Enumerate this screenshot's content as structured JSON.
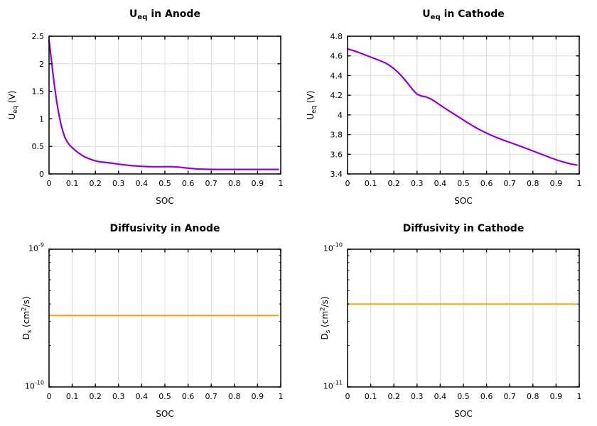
{
  "style": {
    "background": "#ffffff",
    "axis_color": "#000000",
    "grid_color": "#dcdcdc",
    "text_color": "#000000",
    "ocv_curve_color": "#9400d3",
    "diffusivity_curve_color": "#ffa500"
  },
  "chart_data": [
    {
      "id": "ueq-anode",
      "type": "line",
      "title_parts": [
        [
          "U",
          ""
        ],
        [
          "eq",
          "sub"
        ],
        [
          " in Anode",
          ""
        ]
      ],
      "xlabel": "SOC",
      "ylabel_parts": [
        [
          "U",
          ""
        ],
        [
          "eq",
          "sub"
        ],
        [
          " (V)",
          ""
        ]
      ],
      "xlim": [
        0,
        1
      ],
      "ylim": [
        0,
        2.5
      ],
      "y_scale": "linear",
      "x_ticks": [
        [
          0,
          "0"
        ],
        [
          0.1,
          "0.1"
        ],
        [
          0.2,
          "0.2"
        ],
        [
          0.3,
          "0.3"
        ],
        [
          0.4,
          "0.4"
        ],
        [
          0.5,
          "0.5"
        ],
        [
          0.6,
          "0.6"
        ],
        [
          0.7,
          "0.7"
        ],
        [
          0.8,
          "0.8"
        ],
        [
          0.9,
          "0.9"
        ],
        [
          1,
          "1"
        ]
      ],
      "y_ticks": [
        [
          0,
          "0"
        ],
        [
          0.5,
          "0.5"
        ],
        [
          1,
          "1"
        ],
        [
          1.5,
          "1.5"
        ],
        [
          2,
          "2"
        ],
        [
          2.5,
          "2.5"
        ]
      ],
      "grid": true,
      "series": [
        {
          "name": "anode-ocv",
          "color": "#9400d3",
          "width": 2.2,
          "points": [
            [
              0.0,
              2.43
            ],
            [
              0.005,
              2.25
            ],
            [
              0.01,
              2.07
            ],
            [
              0.015,
              1.89
            ],
            [
              0.02,
              1.715
            ],
            [
              0.025,
              1.55
            ],
            [
              0.03,
              1.4
            ],
            [
              0.035,
              1.265
            ],
            [
              0.04,
              1.14
            ],
            [
              0.045,
              1.03
            ],
            [
              0.05,
              0.93
            ],
            [
              0.055,
              0.845
            ],
            [
              0.06,
              0.77
            ],
            [
              0.065,
              0.705
            ],
            [
              0.07,
              0.65
            ],
            [
              0.075,
              0.608
            ],
            [
              0.08,
              0.575
            ],
            [
              0.085,
              0.545
            ],
            [
              0.09,
              0.52
            ],
            [
              0.095,
              0.498
            ],
            [
              0.1,
              0.478
            ],
            [
              0.11,
              0.44
            ],
            [
              0.12,
              0.405
            ],
            [
              0.13,
              0.374
            ],
            [
              0.14,
              0.346
            ],
            [
              0.15,
              0.32
            ],
            [
              0.16,
              0.299
            ],
            [
              0.17,
              0.281
            ],
            [
              0.18,
              0.265
            ],
            [
              0.19,
              0.25
            ],
            [
              0.2,
              0.237
            ],
            [
              0.22,
              0.221
            ],
            [
              0.24,
              0.211
            ],
            [
              0.26,
              0.201
            ],
            [
              0.28,
              0.19
            ],
            [
              0.3,
              0.178
            ],
            [
              0.32,
              0.167
            ],
            [
              0.34,
              0.158
            ],
            [
              0.36,
              0.15
            ],
            [
              0.38,
              0.143
            ],
            [
              0.4,
              0.138
            ],
            [
              0.42,
              0.134
            ],
            [
              0.44,
              0.132
            ],
            [
              0.46,
              0.131
            ],
            [
              0.48,
              0.131
            ],
            [
              0.5,
              0.132
            ],
            [
              0.52,
              0.133
            ],
            [
              0.535,
              0.132
            ],
            [
              0.55,
              0.128
            ],
            [
              0.57,
              0.12
            ],
            [
              0.59,
              0.11
            ],
            [
              0.61,
              0.101
            ],
            [
              0.63,
              0.094
            ],
            [
              0.65,
              0.089
            ],
            [
              0.67,
              0.086
            ],
            [
              0.69,
              0.084
            ],
            [
              0.72,
              0.083
            ],
            [
              0.76,
              0.083
            ],
            [
              0.8,
              0.083
            ],
            [
              0.85,
              0.083
            ],
            [
              0.9,
              0.083
            ],
            [
              0.95,
              0.083
            ],
            [
              0.99,
              0.083
            ]
          ]
        }
      ]
    },
    {
      "id": "ueq-cathode",
      "type": "line",
      "title_parts": [
        [
          "U",
          ""
        ],
        [
          "eq",
          "sub"
        ],
        [
          " in Cathode",
          ""
        ]
      ],
      "xlabel": "SOC",
      "ylabel_parts": [
        [
          "U",
          ""
        ],
        [
          "eq",
          "sub"
        ],
        [
          " (V)",
          ""
        ]
      ],
      "xlim": [
        0,
        1
      ],
      "ylim": [
        3.4,
        4.8
      ],
      "y_scale": "linear",
      "x_ticks": [
        [
          0,
          "0"
        ],
        [
          0.1,
          "0.1"
        ],
        [
          0.2,
          "0.2"
        ],
        [
          0.3,
          "0.3"
        ],
        [
          0.4,
          "0.4"
        ],
        [
          0.5,
          "0.5"
        ],
        [
          0.6,
          "0.6"
        ],
        [
          0.7,
          "0.7"
        ],
        [
          0.8,
          "0.8"
        ],
        [
          0.9,
          "0.9"
        ],
        [
          1,
          "1"
        ]
      ],
      "y_ticks": [
        [
          3.4,
          "3.4"
        ],
        [
          3.6,
          "3.6"
        ],
        [
          3.8,
          "3.8"
        ],
        [
          4,
          "4"
        ],
        [
          4.2,
          "4.2"
        ],
        [
          4.4,
          "4.4"
        ],
        [
          4.6,
          "4.6"
        ],
        [
          4.8,
          "4.8"
        ]
      ],
      "grid": true,
      "series": [
        {
          "name": "cathode-ocv",
          "color": "#9400d3",
          "width": 2.2,
          "points": [
            [
              0.0,
              4.67
            ],
            [
              0.02,
              4.658
            ],
            [
              0.04,
              4.642
            ],
            [
              0.06,
              4.624
            ],
            [
              0.08,
              4.606
            ],
            [
              0.1,
              4.588
            ],
            [
              0.12,
              4.57
            ],
            [
              0.14,
              4.552
            ],
            [
              0.16,
              4.532
            ],
            [
              0.18,
              4.505
            ],
            [
              0.2,
              4.47
            ],
            [
              0.22,
              4.428
            ],
            [
              0.24,
              4.378
            ],
            [
              0.26,
              4.32
            ],
            [
              0.28,
              4.26
            ],
            [
              0.3,
              4.21
            ],
            [
              0.32,
              4.192
            ],
            [
              0.34,
              4.182
            ],
            [
              0.36,
              4.162
            ],
            [
              0.38,
              4.132
            ],
            [
              0.4,
              4.1
            ],
            [
              0.42,
              4.068
            ],
            [
              0.44,
              4.038
            ],
            [
              0.46,
              4.008
            ],
            [
              0.48,
              3.978
            ],
            [
              0.5,
              3.948
            ],
            [
              0.52,
              3.918
            ],
            [
              0.54,
              3.89
            ],
            [
              0.56,
              3.862
            ],
            [
              0.58,
              3.838
            ],
            [
              0.6,
              3.815
            ],
            [
              0.62,
              3.793
            ],
            [
              0.64,
              3.773
            ],
            [
              0.66,
              3.755
            ],
            [
              0.68,
              3.738
            ],
            [
              0.7,
              3.721
            ],
            [
              0.72,
              3.704
            ],
            [
              0.74,
              3.687
            ],
            [
              0.76,
              3.67
            ],
            [
              0.78,
              3.652
            ],
            [
              0.8,
              3.634
            ],
            [
              0.82,
              3.616
            ],
            [
              0.84,
              3.598
            ],
            [
              0.86,
              3.58
            ],
            [
              0.88,
              3.562
            ],
            [
              0.9,
              3.545
            ],
            [
              0.92,
              3.53
            ],
            [
              0.94,
              3.516
            ],
            [
              0.96,
              3.503
            ],
            [
              0.98,
              3.495
            ],
            [
              0.99,
              3.49
            ]
          ]
        }
      ]
    },
    {
      "id": "diffusivity-anode",
      "type": "line",
      "title_parts": [
        [
          "Diffusivity in Anode",
          ""
        ]
      ],
      "xlabel": "SOC",
      "ylabel_parts": [
        [
          "D",
          ""
        ],
        [
          "s",
          "sub"
        ],
        [
          " (cm",
          ""
        ],
        [
          "2",
          "sup"
        ],
        [
          "/s)",
          ""
        ]
      ],
      "xlim": [
        0,
        1
      ],
      "ylim": [
        1e-10,
        1e-09
      ],
      "y_scale": "log",
      "x_ticks": [
        [
          0,
          "0"
        ],
        [
          0.1,
          "0.1"
        ],
        [
          0.2,
          "0.2"
        ],
        [
          0.3,
          "0.3"
        ],
        [
          0.4,
          "0.4"
        ],
        [
          0.5,
          "0.5"
        ],
        [
          0.6,
          "0.6"
        ],
        [
          0.7,
          "0.7"
        ],
        [
          0.8,
          "0.8"
        ],
        [
          0.9,
          "0.9"
        ],
        [
          1,
          "1"
        ]
      ],
      "y_ticks": [
        [
          1e-09,
          "10",
          "-9"
        ],
        [
          1e-10,
          "10",
          "-10"
        ]
      ],
      "grid": true,
      "series": [
        {
          "name": "anode-diffusivity",
          "color": "#ffa500",
          "width": 2,
          "constant_value": 3.3e-10,
          "points": [
            [
              0,
              3.3e-10
            ],
            [
              0.99,
              3.3e-10
            ]
          ]
        }
      ]
    },
    {
      "id": "diffusivity-cathode",
      "type": "line",
      "title_parts": [
        [
          "Diffusivity in Cathode",
          ""
        ]
      ],
      "xlabel": "SOC",
      "ylabel_parts": [
        [
          "D",
          ""
        ],
        [
          "s",
          "sub"
        ],
        [
          " (cm",
          ""
        ],
        [
          "2",
          "sup"
        ],
        [
          "/s)",
          ""
        ]
      ],
      "xlim": [
        0,
        1
      ],
      "ylim": [
        1e-11,
        1e-10
      ],
      "y_scale": "log",
      "x_ticks": [
        [
          0,
          "0"
        ],
        [
          0.1,
          "0.1"
        ],
        [
          0.2,
          "0.2"
        ],
        [
          0.3,
          "0.3"
        ],
        [
          0.4,
          "0.4"
        ],
        [
          0.5,
          "0.5"
        ],
        [
          0.6,
          "0.6"
        ],
        [
          0.7,
          "0.7"
        ],
        [
          0.8,
          "0.8"
        ],
        [
          0.9,
          "0.9"
        ],
        [
          1,
          "1"
        ]
      ],
      "y_ticks": [
        [
          1e-10,
          "10",
          "-10"
        ],
        [
          1e-11,
          "10",
          "-11"
        ]
      ],
      "grid": true,
      "series": [
        {
          "name": "cathode-diffusivity",
          "color": "#ffa500",
          "width": 2,
          "constant_value": 4e-11,
          "points": [
            [
              0,
              4e-11
            ],
            [
              0.99,
              4e-11
            ]
          ]
        }
      ]
    }
  ]
}
